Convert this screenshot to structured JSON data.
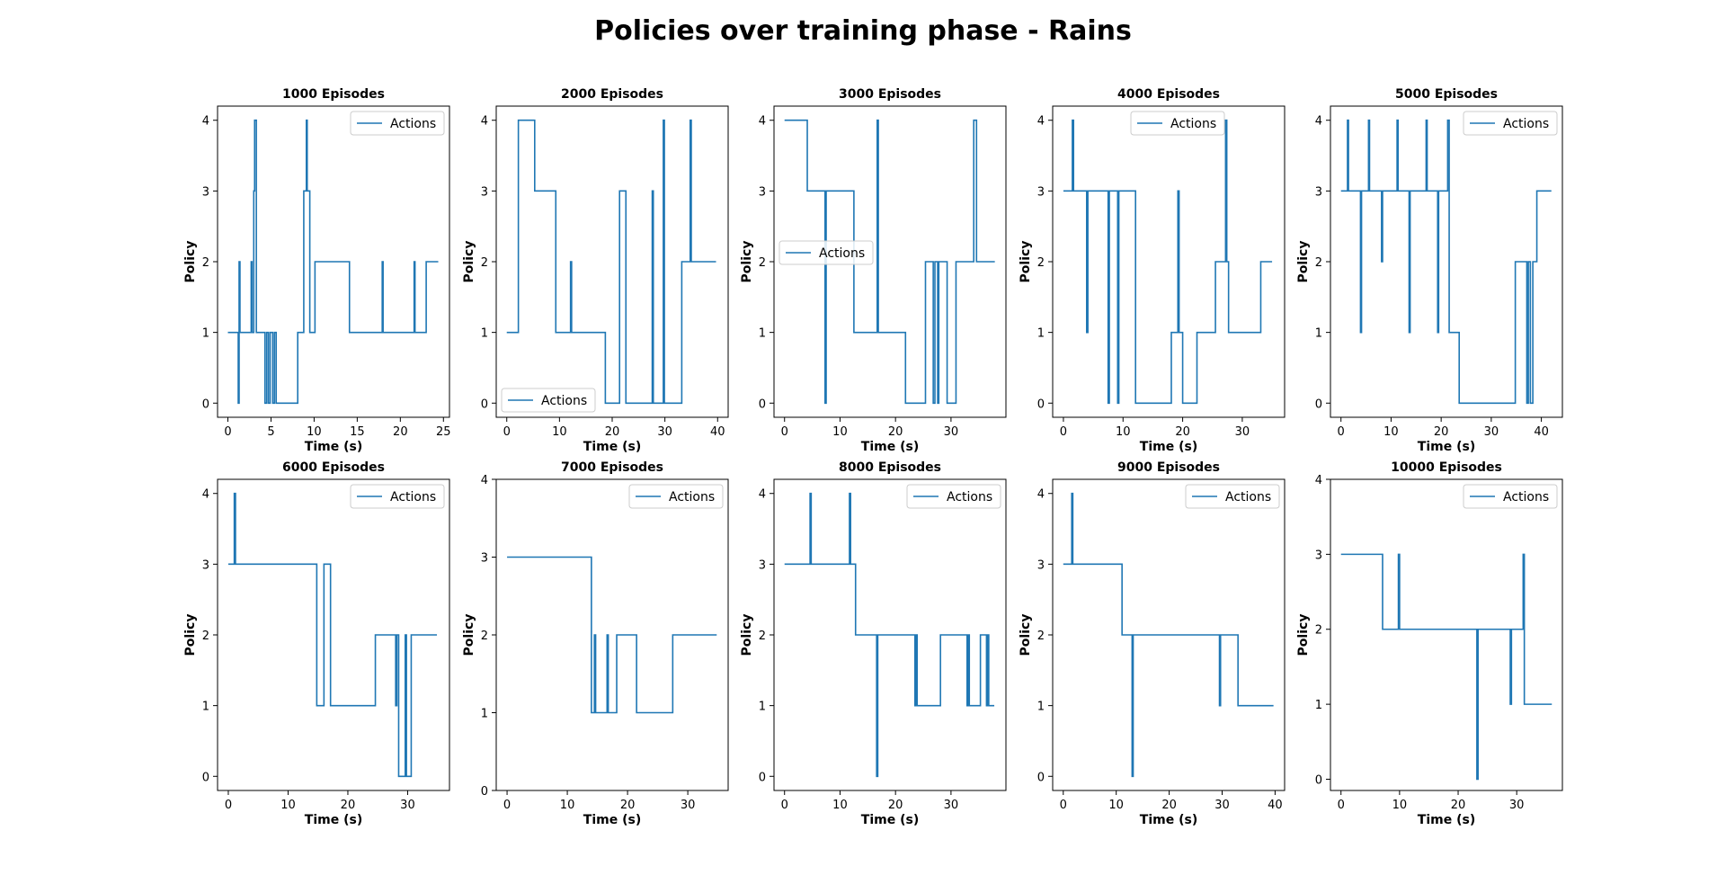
{
  "figure": {
    "title": "Policies over training phase - Rains",
    "legend_label": "Actions",
    "line_color": "#1f77b4",
    "xlabel": "Time (s)",
    "ylabel": "Policy"
  },
  "chart_data": [
    {
      "type": "line",
      "title": "1000 Episodes",
      "xlabel": "Time (s)",
      "ylabel": "Policy",
      "xlim": [
        -1.2,
        25.7
      ],
      "ylim": [
        -0.2,
        4.2
      ],
      "xticks": [
        0,
        5,
        10,
        15,
        20,
        25
      ],
      "yticks": [
        0,
        1,
        2,
        3,
        4
      ],
      "legend": "upper right",
      "series": [
        {
          "name": "Actions",
          "x": [
            0,
            1.2,
            1.2,
            1.3,
            1.3,
            1.4,
            1.4,
            1.5,
            1.5,
            1.6,
            1.6,
            2.7,
            2.7,
            2.8,
            2.8,
            3.0,
            3.0,
            3.1,
            3.1,
            3.3,
            3.3,
            3.4,
            3.4,
            4.3,
            4.3,
            4.5,
            4.5,
            4.7,
            4.7,
            4.9,
            4.9,
            5.2,
            5.2,
            5.4,
            5.4,
            5.6,
            5.6,
            8.1,
            8.1,
            8.8,
            8.8,
            9.1,
            9.1,
            9.2,
            9.2,
            9.5,
            9.5,
            10.1,
            10.1,
            10.3,
            10.3,
            14.1,
            14.1,
            17.9,
            17.9,
            18.0,
            18.0,
            21.6,
            21.6,
            21.7,
            21.7,
            23.0,
            23.0,
            24.4
          ],
          "y": [
            1,
            1,
            0,
            0,
            2,
            2,
            1,
            1,
            1,
            1,
            1,
            1,
            2,
            2,
            1,
            1,
            3,
            3,
            4,
            4,
            1,
            1,
            1,
            1,
            0,
            0,
            1,
            1,
            0,
            0,
            1,
            1,
            0,
            0,
            1,
            1,
            0,
            0,
            1,
            1,
            3,
            3,
            4,
            4,
            3,
            3,
            1,
            1,
            2,
            2,
            2,
            2,
            1,
            1,
            2,
            2,
            1,
            1,
            2,
            2,
            1,
            1,
            2,
            2
          ]
        }
      ]
    },
    {
      "type": "line",
      "title": "2000 Episodes",
      "xlabel": "Time (s)",
      "ylabel": "Policy",
      "xlim": [
        -2,
        42
      ],
      "ylim": [
        -0.2,
        4.2
      ],
      "xticks": [
        0,
        10,
        20,
        30,
        40
      ],
      "yticks": [
        0,
        1,
        2,
        3,
        4
      ],
      "legend": "lower left",
      "series": [
        {
          "name": "Actions",
          "x": [
            0,
            2.2,
            2.2,
            5.3,
            5.3,
            9.3,
            9.3,
            12.1,
            12.1,
            12.3,
            12.3,
            18.7,
            18.7,
            21.4,
            21.4,
            22.6,
            22.6,
            27.6,
            27.6,
            27.8,
            27.8,
            29.7,
            29.7,
            29.9,
            29.9,
            33.2,
            33.2,
            34.8,
            34.8,
            35.0,
            35.0,
            39.7
          ],
          "y": [
            1,
            1,
            4,
            4,
            3,
            3,
            1,
            1,
            2,
            2,
            1,
            1,
            0,
            0,
            3,
            3,
            0,
            0,
            3,
            3,
            0,
            0,
            4,
            4,
            0,
            0,
            2,
            2,
            4,
            4,
            2,
            2
          ]
        }
      ]
    },
    {
      "type": "line",
      "title": "3000 Episodes",
      "xlabel": "Time (s)",
      "ylabel": "Policy",
      "xlim": [
        -1.9,
        39.9
      ],
      "ylim": [
        -0.2,
        4.2
      ],
      "xticks": [
        0,
        10,
        20,
        30
      ],
      "yticks": [
        0,
        1,
        2,
        3,
        4
      ],
      "legend": "center left",
      "series": [
        {
          "name": "Actions",
          "x": [
            0,
            4.1,
            4.1,
            7.3,
            7.3,
            7.5,
            7.5,
            12.5,
            12.5,
            16.7,
            16.7,
            16.9,
            16.9,
            21.8,
            21.8,
            25.4,
            25.4,
            26.8,
            26.8,
            27.1,
            27.1,
            27.6,
            27.6,
            27.8,
            27.8,
            29.3,
            29.3,
            30.9,
            30.9,
            34.1,
            34.1,
            34.6,
            34.6,
            34.8,
            34.8,
            37.9
          ],
          "y": [
            4,
            4,
            3,
            3,
            0,
            0,
            3,
            3,
            1,
            1,
            4,
            4,
            1,
            1,
            0,
            0,
            2,
            2,
            0,
            0,
            2,
            2,
            0,
            0,
            2,
            2,
            0,
            0,
            2,
            2,
            4,
            4,
            2,
            2,
            2,
            2
          ]
        }
      ]
    },
    {
      "type": "line",
      "title": "4000 Episodes",
      "xlabel": "Time (s)",
      "ylabel": "Policy",
      "xlim": [
        -1.8,
        37.1
      ],
      "ylim": [
        -0.2,
        4.2
      ],
      "xticks": [
        0,
        10,
        20,
        30
      ],
      "yticks": [
        0,
        1,
        2,
        3,
        4
      ],
      "legend": "upper center",
      "series": [
        {
          "name": "Actions",
          "x": [
            0,
            1.5,
            1.5,
            1.7,
            1.7,
            3.9,
            3.9,
            4.1,
            4.1,
            7.5,
            7.5,
            7.7,
            7.7,
            9.1,
            9.1,
            9.3,
            9.3,
            12.1,
            12.1,
            18.1,
            18.1,
            19.2,
            19.2,
            19.4,
            19.4,
            20.0,
            20.0,
            22.4,
            22.4,
            25.5,
            25.5,
            27.2,
            27.2,
            27.4,
            27.4,
            27.7,
            27.7,
            33.1,
            33.1,
            35.0
          ],
          "y": [
            3,
            3,
            4,
            4,
            3,
            3,
            1,
            1,
            3,
            3,
            0,
            0,
            3,
            3,
            0,
            0,
            3,
            3,
            0,
            0,
            1,
            1,
            3,
            3,
            1,
            1,
            0,
            0,
            1,
            1,
            2,
            2,
            4,
            4,
            2,
            2,
            1,
            1,
            2,
            2
          ]
        }
      ]
    },
    {
      "type": "line",
      "title": "5000 Episodes",
      "xlabel": "Time (s)",
      "ylabel": "Policy",
      "xlim": [
        -2.1,
        44.2
      ],
      "ylim": [
        -0.2,
        4.2
      ],
      "xticks": [
        0,
        10,
        20,
        30,
        40
      ],
      "yticks": [
        0,
        1,
        2,
        3,
        4
      ],
      "legend": "upper right",
      "series": [
        {
          "name": "Actions",
          "x": [
            0,
            1.3,
            1.3,
            1.5,
            1.5,
            3.9,
            3.9,
            4.1,
            4.1,
            5.5,
            5.5,
            5.7,
            5.7,
            8.1,
            8.1,
            8.3,
            8.3,
            11.2,
            11.2,
            11.4,
            11.4,
            13.6,
            13.6,
            13.8,
            13.8,
            17.0,
            17.0,
            17.2,
            17.2,
            19.3,
            19.3,
            19.5,
            19.5,
            21.3,
            21.3,
            21.6,
            21.6,
            22.4,
            22.4,
            23.6,
            23.6,
            34.8,
            34.8,
            37.1,
            37.1,
            37.4,
            37.4,
            37.8,
            37.8,
            38.3,
            38.3,
            39.1,
            39.1,
            42.0
          ],
          "y": [
            3,
            3,
            4,
            4,
            3,
            3,
            1,
            1,
            3,
            3,
            4,
            4,
            3,
            3,
            2,
            2,
            3,
            3,
            4,
            4,
            3,
            3,
            1,
            1,
            3,
            3,
            4,
            4,
            3,
            3,
            1,
            1,
            3,
            3,
            4,
            4,
            1,
            1,
            1,
            1,
            0,
            0,
            2,
            2,
            0,
            0,
            2,
            2,
            0,
            0,
            2,
            2,
            3,
            3
          ]
        }
      ]
    },
    {
      "type": "line",
      "title": "6000 Episodes",
      "xlabel": "Time (s)",
      "ylabel": "Policy",
      "xlim": [
        -1.8,
        37.0
      ],
      "ylim": [
        -0.2,
        4.2
      ],
      "xticks": [
        0,
        10,
        20,
        30
      ],
      "yticks": [
        0,
        1,
        2,
        3,
        4
      ],
      "legend": "upper right",
      "series": [
        {
          "name": "Actions",
          "x": [
            0,
            1.0,
            1.0,
            1.2,
            1.2,
            14.8,
            14.8,
            16.0,
            16.0,
            17.1,
            17.1,
            24.6,
            24.6,
            28.0,
            28.0,
            28.2,
            28.2,
            28.5,
            28.5,
            29.6,
            29.6,
            29.8,
            29.8,
            30.6,
            30.6,
            34.9
          ],
          "y": [
            3,
            3,
            4,
            4,
            3,
            3,
            1,
            1,
            3,
            3,
            1,
            1,
            2,
            2,
            1,
            1,
            2,
            2,
            0,
            0,
            2,
            2,
            0,
            0,
            2,
            2
          ]
        }
      ]
    },
    {
      "type": "line",
      "title": "7000 Episodes",
      "xlabel": "Time (s)",
      "ylabel": "Policy",
      "xlim": [
        -1.8,
        36.7
      ],
      "ylim": [
        0,
        4
      ],
      "xticks": [
        0,
        10,
        20,
        30
      ],
      "yticks": [
        0,
        1,
        2,
        3,
        4
      ],
      "legend": "upper right",
      "series": [
        {
          "name": "Actions",
          "x": [
            0,
            14.0,
            14.0,
            14.5,
            14.5,
            14.7,
            14.7,
            16.6,
            16.6,
            16.8,
            16.8,
            18.2,
            18.2,
            21.5,
            21.5,
            27.5,
            27.5,
            34.8
          ],
          "y": [
            3,
            3,
            1,
            1,
            2,
            2,
            1,
            1,
            2,
            2,
            1,
            1,
            2,
            2,
            1,
            1,
            2,
            2
          ]
        }
      ]
    },
    {
      "type": "line",
      "title": "8000 Episodes",
      "xlabel": "Time (s)",
      "ylabel": "Policy",
      "xlim": [
        -1.9,
        39.9
      ],
      "ylim": [
        -0.2,
        4.2
      ],
      "xticks": [
        0,
        10,
        20,
        30
      ],
      "yticks": [
        0,
        1,
        2,
        3,
        4
      ],
      "legend": "upper right",
      "series": [
        {
          "name": "Actions",
          "x": [
            0,
            4.6,
            4.6,
            4.8,
            4.8,
            11.7,
            11.7,
            11.9,
            11.9,
            12.8,
            12.8,
            16.6,
            16.6,
            16.8,
            16.8,
            23.5,
            23.5,
            23.7,
            23.7,
            23.9,
            23.9,
            28.1,
            28.1,
            32.9,
            32.9,
            33.1,
            33.1,
            33.3,
            33.3,
            35.3,
            35.3,
            36.4,
            36.4,
            36.6,
            36.6,
            36.8,
            36.8,
            37.0,
            37.0,
            37.8
          ],
          "y": [
            3,
            3,
            4,
            4,
            3,
            3,
            4,
            4,
            3,
            3,
            2,
            2,
            0,
            0,
            2,
            2,
            1,
            1,
            2,
            2,
            1,
            1,
            2,
            2,
            1,
            1,
            2,
            2,
            1,
            1,
            2,
            2,
            1,
            1,
            2,
            2,
            1,
            1,
            1,
            1
          ]
        }
      ]
    },
    {
      "type": "line",
      "title": "9000 Episodes",
      "xlabel": "Time (s)",
      "ylabel": "Policy",
      "xlim": [
        -2.0,
        41.8
      ],
      "ylim": [
        -0.2,
        4.2
      ],
      "xticks": [
        0,
        10,
        20,
        30,
        40
      ],
      "yticks": [
        0,
        1,
        2,
        3,
        4
      ],
      "legend": "upper right",
      "series": [
        {
          "name": "Actions",
          "x": [
            0,
            1.6,
            1.6,
            1.8,
            1.8,
            11.1,
            11.1,
            13.0,
            13.0,
            13.2,
            13.2,
            29.5,
            29.5,
            29.7,
            29.7,
            33.0,
            33.0,
            39.7
          ],
          "y": [
            3,
            3,
            4,
            4,
            3,
            3,
            2,
            2,
            0,
            0,
            2,
            2,
            1,
            1,
            2,
            2,
            1,
            1
          ]
        }
      ]
    },
    {
      "type": "line",
      "title": "10000 Episodes",
      "xlabel": "Time (s)",
      "ylabel": "Policy",
      "xlim": [
        -1.8,
        37.8
      ],
      "ylim": [
        -0.15,
        4.0
      ],
      "xticks": [
        0,
        10,
        20,
        30
      ],
      "yticks": [
        0,
        1,
        2,
        3,
        4
      ],
      "legend": "upper right",
      "series": [
        {
          "name": "Actions",
          "x": [
            0,
            7.1,
            7.1,
            9.8,
            9.8,
            10.0,
            10.0,
            23.2,
            23.2,
            23.4,
            23.4,
            28.9,
            28.9,
            29.1,
            29.1,
            31.1,
            31.1,
            31.3,
            31.3,
            36.0
          ],
          "y": [
            3,
            3,
            2,
            2,
            3,
            3,
            2,
            2,
            0,
            0,
            2,
            2,
            1,
            1,
            2,
            2,
            3,
            3,
            1,
            1
          ]
        }
      ]
    }
  ]
}
